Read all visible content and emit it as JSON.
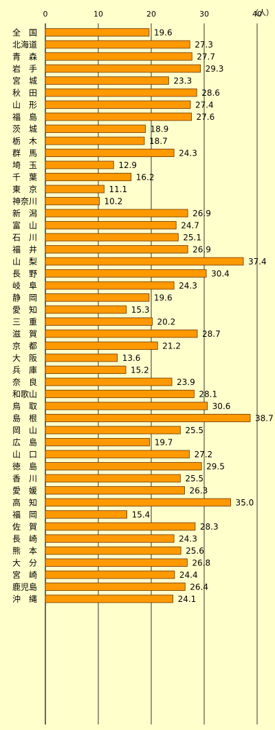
{
  "chart_data": {
    "type": "bar",
    "orientation": "horizontal",
    "unit": "（人）",
    "xlim": [
      0,
      40
    ],
    "xticks": [
      "0",
      "10",
      "20",
      "30",
      "40"
    ],
    "grid": "vertical",
    "bar_color": "#ff9900",
    "bar_border_color": "#663300",
    "groups": [
      [
        {
          "label": "全　国",
          "value": 19.6,
          "value_label": "19.6"
        }
      ],
      [
        {
          "label": "北海道",
          "value": 27.3,
          "value_label": "27.3"
        },
        {
          "label": "青　森",
          "value": 27.7,
          "value_label": "27.7"
        },
        {
          "label": "岩　手",
          "value": 29.3,
          "value_label": "29.3"
        },
        {
          "label": "宮　城",
          "value": 23.3,
          "value_label": "23.3"
        },
        {
          "label": "秋　田",
          "value": 28.6,
          "value_label": "28.6"
        }
      ],
      [
        {
          "label": "山　形",
          "value": 27.4,
          "value_label": "27.4"
        },
        {
          "label": "福　島",
          "value": 27.6,
          "value_label": "27.6"
        },
        {
          "label": "茨　城",
          "value": 18.9,
          "value_label": "18.9"
        },
        {
          "label": "栃　木",
          "value": 18.7,
          "value_label": "18.7"
        },
        {
          "label": "群　馬",
          "value": 24.3,
          "value_label": "24.3"
        }
      ],
      [
        {
          "label": "埼　玉",
          "value": 12.9,
          "value_label": "12.9"
        },
        {
          "label": "千　葉",
          "value": 16.2,
          "value_label": "16.2"
        },
        {
          "label": "東　京",
          "value": 11.1,
          "value_label": "11.1"
        },
        {
          "label": "神奈川",
          "value": 10.2,
          "value_label": "10.2"
        },
        {
          "label": "新　潟",
          "value": 26.9,
          "value_label": "26.9"
        }
      ],
      [
        {
          "label": "富　山",
          "value": 24.7,
          "value_label": "24.7"
        },
        {
          "label": "石　川",
          "value": 25.1,
          "value_label": "25.1"
        },
        {
          "label": "福　井",
          "value": 26.9,
          "value_label": "26.9"
        },
        {
          "label": "山　梨",
          "value": 37.4,
          "value_label": "37.4"
        },
        {
          "label": "長　野",
          "value": 30.4,
          "value_label": "30.4"
        }
      ],
      [
        {
          "label": "岐　阜",
          "value": 24.3,
          "value_label": "24.3"
        },
        {
          "label": "静　岡",
          "value": 19.6,
          "value_label": "19.6"
        },
        {
          "label": "愛　知",
          "value": 15.3,
          "value_label": "15.3"
        },
        {
          "label": "三　重",
          "value": 20.2,
          "value_label": "20.2"
        },
        {
          "label": "滋　賀",
          "value": 28.7,
          "value_label": "28.7"
        }
      ],
      [
        {
          "label": "京　都",
          "value": 21.2,
          "value_label": "21.2"
        },
        {
          "label": "大　阪",
          "value": 13.6,
          "value_label": "13.6"
        },
        {
          "label": "兵　庫",
          "value": 15.2,
          "value_label": "15.2"
        },
        {
          "label": "奈　良",
          "value": 23.9,
          "value_label": "23.9"
        },
        {
          "label": "和歌山",
          "value": 28.1,
          "value_label": "28.1"
        }
      ],
      [
        {
          "label": "鳥　取",
          "value": 30.6,
          "value_label": "30.6"
        },
        {
          "label": "島　根",
          "value": 38.7,
          "value_label": "38.7"
        },
        {
          "label": "岡　山",
          "value": 25.5,
          "value_label": "25.5"
        },
        {
          "label": "広　島",
          "value": 19.7,
          "value_label": "19.7"
        },
        {
          "label": "山　口",
          "value": 27.2,
          "value_label": "27.2"
        }
      ],
      [
        {
          "label": "徳　島",
          "value": 29.5,
          "value_label": "29.5"
        },
        {
          "label": "香　川",
          "value": 25.5,
          "value_label": "25.5"
        },
        {
          "label": "愛　媛",
          "value": 26.3,
          "value_label": "26.3"
        },
        {
          "label": "高　知",
          "value": 35.0,
          "value_label": "35.0"
        },
        {
          "label": "福　岡",
          "value": 15.4,
          "value_label": "15.4"
        }
      ],
      [
        {
          "label": "佐　賀",
          "value": 28.3,
          "value_label": "28.3"
        },
        {
          "label": "長　崎",
          "value": 24.3,
          "value_label": "24.3"
        },
        {
          "label": "熊　本",
          "value": 25.6,
          "value_label": "25.6"
        },
        {
          "label": "大　分",
          "value": 26.8,
          "value_label": "26.8"
        },
        {
          "label": "宮　崎",
          "value": 24.4,
          "value_label": "24.4"
        }
      ],
      [
        {
          "label": "鹿児島",
          "value": 26.4,
          "value_label": "26.4"
        },
        {
          "label": "沖　縄",
          "value": 24.1,
          "value_label": "24.1"
        }
      ]
    ]
  }
}
